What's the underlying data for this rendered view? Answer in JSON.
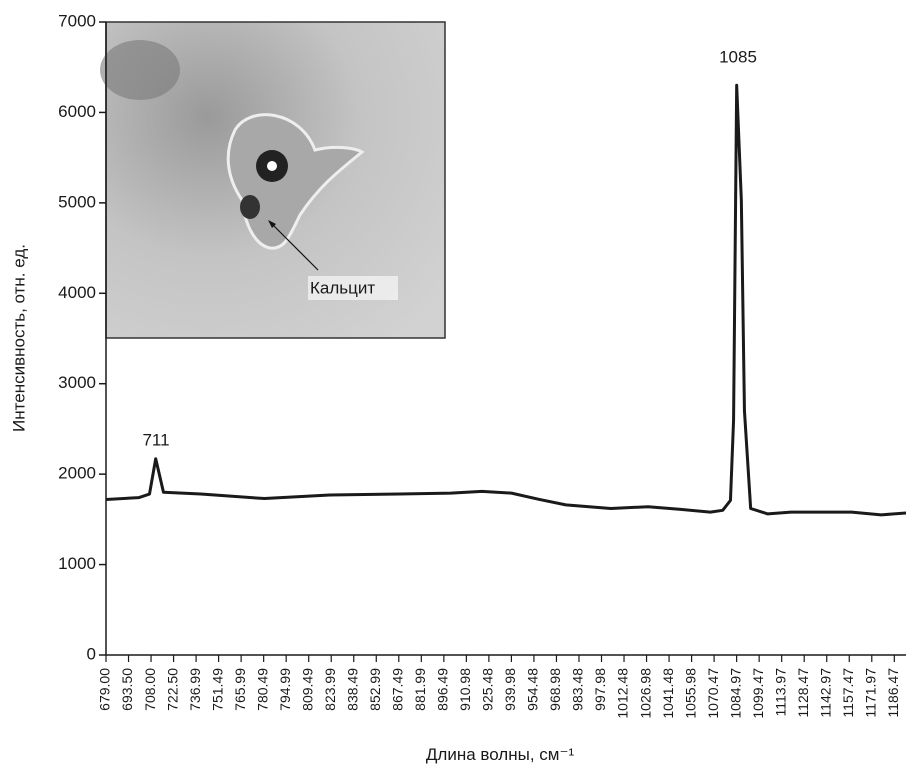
{
  "chart_data": {
    "type": "line",
    "y_label": "Интенсивность, отн. ед.",
    "x_label": "Длина волны, см⁻¹",
    "annotations": [
      "711",
      "1085"
    ],
    "inset_label": "Кальцит",
    "color": "#1a1a1a",
    "x": [
      679,
      700,
      707,
      711,
      716,
      740,
      781,
      823,
      868,
      901,
      921,
      940,
      958,
      975,
      1004,
      1028,
      1049,
      1068,
      1076,
      1081,
      1083,
      1085,
      1088,
      1090,
      1094,
      1105,
      1120,
      1159,
      1178,
      1194
    ],
    "values": [
      1720,
      1740,
      1780,
      2170,
      1800,
      1780,
      1730,
      1770,
      1780,
      1790,
      1810,
      1790,
      1720,
      1660,
      1620,
      1640,
      1610,
      1580,
      1600,
      1710,
      2600,
      6300,
      5030,
      2700,
      1620,
      1560,
      1580,
      1580,
      1550,
      1570
    ],
    "xlim": [
      679,
      1194
    ],
    "ylim": [
      0,
      7000
    ],
    "yticks": [
      0,
      1000,
      2000,
      3000,
      4000,
      5000,
      6000,
      7000
    ],
    "xticks": [
      {
        "value": 679,
        "label": "679.00"
      },
      {
        "value": 693.5,
        "label": "693.50"
      },
      {
        "value": 708,
        "label": "708.00"
      },
      {
        "value": 722.5,
        "label": "722.50"
      },
      736.99,
      751.49,
      765.99,
      780.49,
      794.99,
      809.49,
      823.99,
      838.49,
      852.99,
      867.49,
      881.99,
      896.49,
      910.98,
      925.48,
      939.98,
      954.48,
      968.98,
      983.48,
      997.98,
      1012.48,
      1026.98,
      1041.48,
      1055.98,
      1070.47,
      1084.97,
      1099.47,
      1113.97,
      1128.47,
      1142.97,
      1157.47,
      1171.97,
      1186.47
    ]
  }
}
